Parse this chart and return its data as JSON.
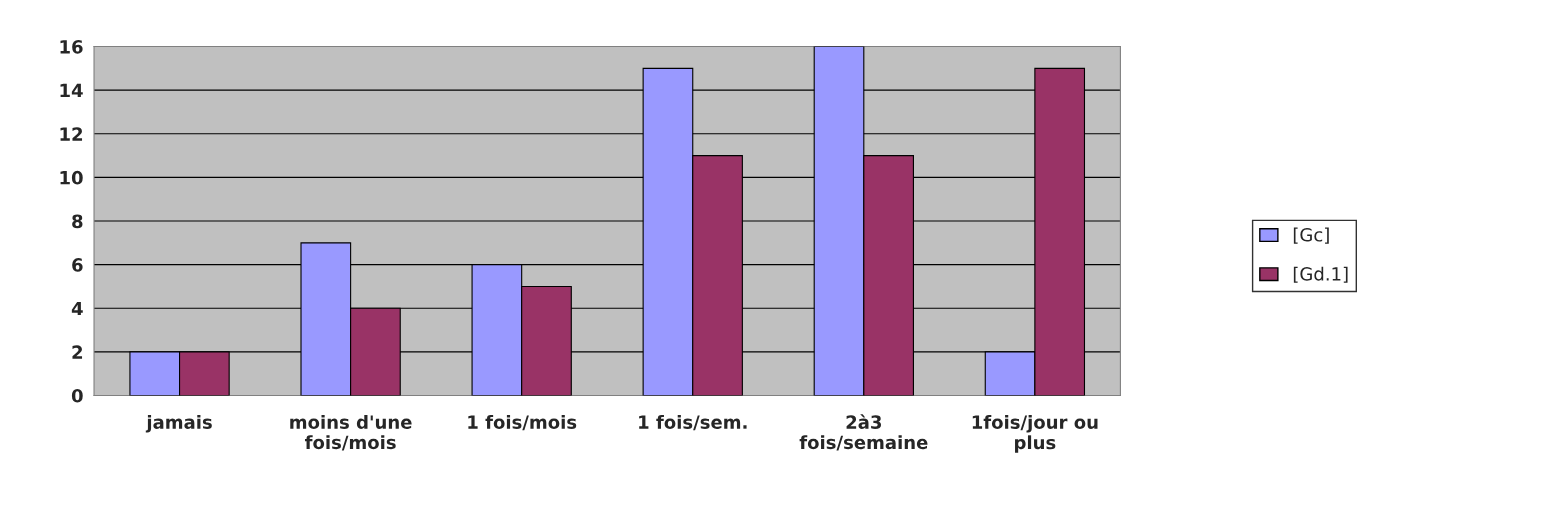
{
  "chart_data": {
    "type": "bar",
    "categories": [
      "jamais",
      "moins d'une\nfois/mois",
      "1 fois/mois",
      "1 fois/sem.",
      "2à3\nfois/semaine",
      "1fois/jour ou\nplus"
    ],
    "series": [
      {
        "name": "[Gc]",
        "color": "#9999ff",
        "values": [
          2,
          7,
          6,
          15,
          16,
          2
        ]
      },
      {
        "name": "[Gd.1]",
        "color": "#993366",
        "values": [
          2,
          4,
          5,
          11,
          11,
          15
        ]
      }
    ],
    "ylim": [
      0,
      16
    ],
    "yticks": [
      0,
      2,
      4,
      6,
      8,
      10,
      12,
      14,
      16
    ],
    "grid": "y",
    "legend": "right"
  }
}
